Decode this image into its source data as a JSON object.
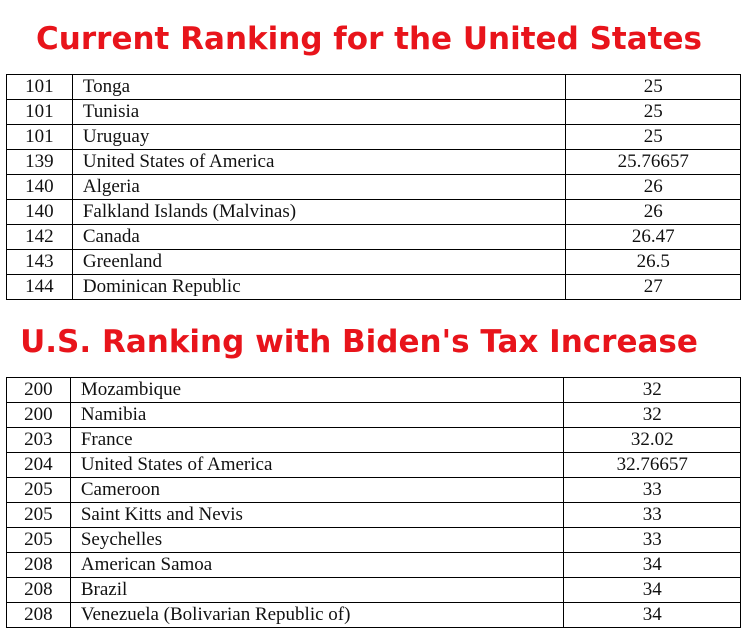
{
  "current": {
    "title": "Current Ranking for the United States",
    "rows": [
      {
        "rank": "101",
        "country": "Tonga",
        "value": "25"
      },
      {
        "rank": "101",
        "country": "Tunisia",
        "value": "25"
      },
      {
        "rank": "101",
        "country": "Uruguay",
        "value": "25"
      },
      {
        "rank": "139",
        "country": "United States of America",
        "value": "25.76657"
      },
      {
        "rank": "140",
        "country": "Algeria",
        "value": "26"
      },
      {
        "rank": "140",
        "country": "Falkland Islands (Malvinas)",
        "value": "26"
      },
      {
        "rank": "142",
        "country": "Canada",
        "value": "26.47"
      },
      {
        "rank": "143",
        "country": "Greenland",
        "value": "26.5"
      },
      {
        "rank": "144",
        "country": "Dominican Republic",
        "value": "27"
      }
    ]
  },
  "proposed": {
    "title": "U.S. Ranking with Biden's Tax Increase",
    "rows": [
      {
        "rank": "200",
        "country": "Mozambique",
        "value": "32"
      },
      {
        "rank": "200",
        "country": "Namibia",
        "value": "32"
      },
      {
        "rank": "203",
        "country": "France",
        "value": "32.02"
      },
      {
        "rank": "204",
        "country": "United States of America",
        "value": "32.76657"
      },
      {
        "rank": "205",
        "country": "Cameroon",
        "value": "33"
      },
      {
        "rank": "205",
        "country": "Saint Kitts and Nevis",
        "value": "33"
      },
      {
        "rank": "205",
        "country": "Seychelles",
        "value": "33"
      },
      {
        "rank": "208",
        "country": "American Samoa",
        "value": "34"
      },
      {
        "rank": "208",
        "country": "Brazil",
        "value": "34"
      },
      {
        "rank": "208",
        "country": "Venezuela (Bolivarian Republic of)",
        "value": "34"
      }
    ]
  }
}
